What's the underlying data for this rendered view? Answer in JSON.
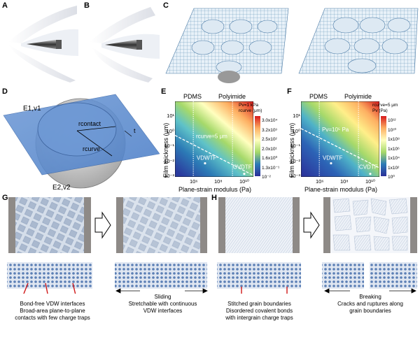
{
  "panel_letters": {
    "A": "A",
    "B": "B",
    "C": "C",
    "D": "D",
    "E": "E",
    "F": "F",
    "G": "G",
    "H": "H"
  },
  "panel_d": {
    "top_label": "E1,v1",
    "bottom_label": "E2,v2",
    "r_contact": "rcontact",
    "r_curve": "rcurve",
    "t": "t"
  },
  "chart_data": [
    {
      "type": "heatmap",
      "panel": "E",
      "xlabel": "Plane-strain modulus (Pa)",
      "ylabel": "Film thickness (μm)",
      "x_ticks": [
        "10⁶",
        "10⁸",
        "10¹⁰"
      ],
      "y_ticks": [
        "10¹",
        "10⁰",
        "10⁻¹",
        "10⁻²",
        "10⁻³"
      ],
      "xlim_log10": [
        5,
        11
      ],
      "ylim_log10": [
        -3,
        2
      ],
      "vertical_lines": [
        {
          "label": "PDMS",
          "x_log10": 6.4
        },
        {
          "label": "Polyimide",
          "x_log10": 9.4
        }
      ],
      "legend_lines": [
        "Pv=1 kPa",
        "rcurve (μm)"
      ],
      "dashed_line_label": "rcurve=5 μm",
      "dashed_line": [
        [
          5,
          -0.25
        ],
        [
          11,
          -2.9
        ]
      ],
      "points": [
        {
          "label": "VDWTF",
          "x_log10": 7.3,
          "y_log10": -2.1
        },
        {
          "label": "CVDTF",
          "x_log10": 10.3,
          "y_log10": -2.8
        }
      ],
      "colorbar_ticks": [
        "3.0x10⁴",
        "3.2x10³",
        "2.5x10²",
        "2.0x10¹",
        "1.6x10⁰",
        "1.3x10⁻¹",
        "10⁻²"
      ]
    },
    {
      "type": "heatmap",
      "panel": "F",
      "xlabel": "Plane-strain modulus (Pa)",
      "ylabel": "Film thickness (μm)",
      "x_ticks": [
        "10⁶",
        "10⁸",
        "10¹⁰"
      ],
      "y_ticks": [
        "10¹",
        "10⁰",
        "10⁻¹",
        "10⁻²",
        "10⁻³"
      ],
      "xlim_log10": [
        5,
        11
      ],
      "ylim_log10": [
        -3,
        2
      ],
      "vertical_lines": [
        {
          "label": "PDMS",
          "x_log10": 6.4
        },
        {
          "label": "Polyimide",
          "x_log10": 9.4
        }
      ],
      "legend_lines": [
        "rcurve=5 μm",
        "Pv (Pa)"
      ],
      "dashed_line_label": "Pv=10⁵ Pa",
      "dashed_line": [
        [
          5,
          0.2
        ],
        [
          11,
          -2.4
        ]
      ],
      "points": [
        {
          "label": "VDWTF",
          "x_log10": 7.3,
          "y_log10": -2.1
        },
        {
          "label": "CVDTF",
          "x_log10": 10.3,
          "y_log10": -2.8
        }
      ],
      "colorbar_ticks": [
        "10¹²",
        "10¹⁰",
        "1x10⁸",
        "1x10⁶",
        "1x10⁴",
        "1x10²",
        "10⁰"
      ]
    }
  ],
  "captions": {
    "g_left_1": "Bond-free VDW interfaces",
    "g_left_2": "Broad-area plane-to-plane",
    "g_left_3": "contacts with few charge traps",
    "g_right_1": "Sliding",
    "g_right_2": "Stretchable with continuous",
    "g_right_3": "VDW interfaces",
    "h_left_1": "Stitched grain boundaries",
    "h_left_2": "Disordered covalent bonds",
    "h_left_3": "with intergrain charge traps",
    "h_right_1": "Breaking",
    "h_right_2": "Cracks and ruptures along",
    "h_right_3": "grain boundaries"
  }
}
